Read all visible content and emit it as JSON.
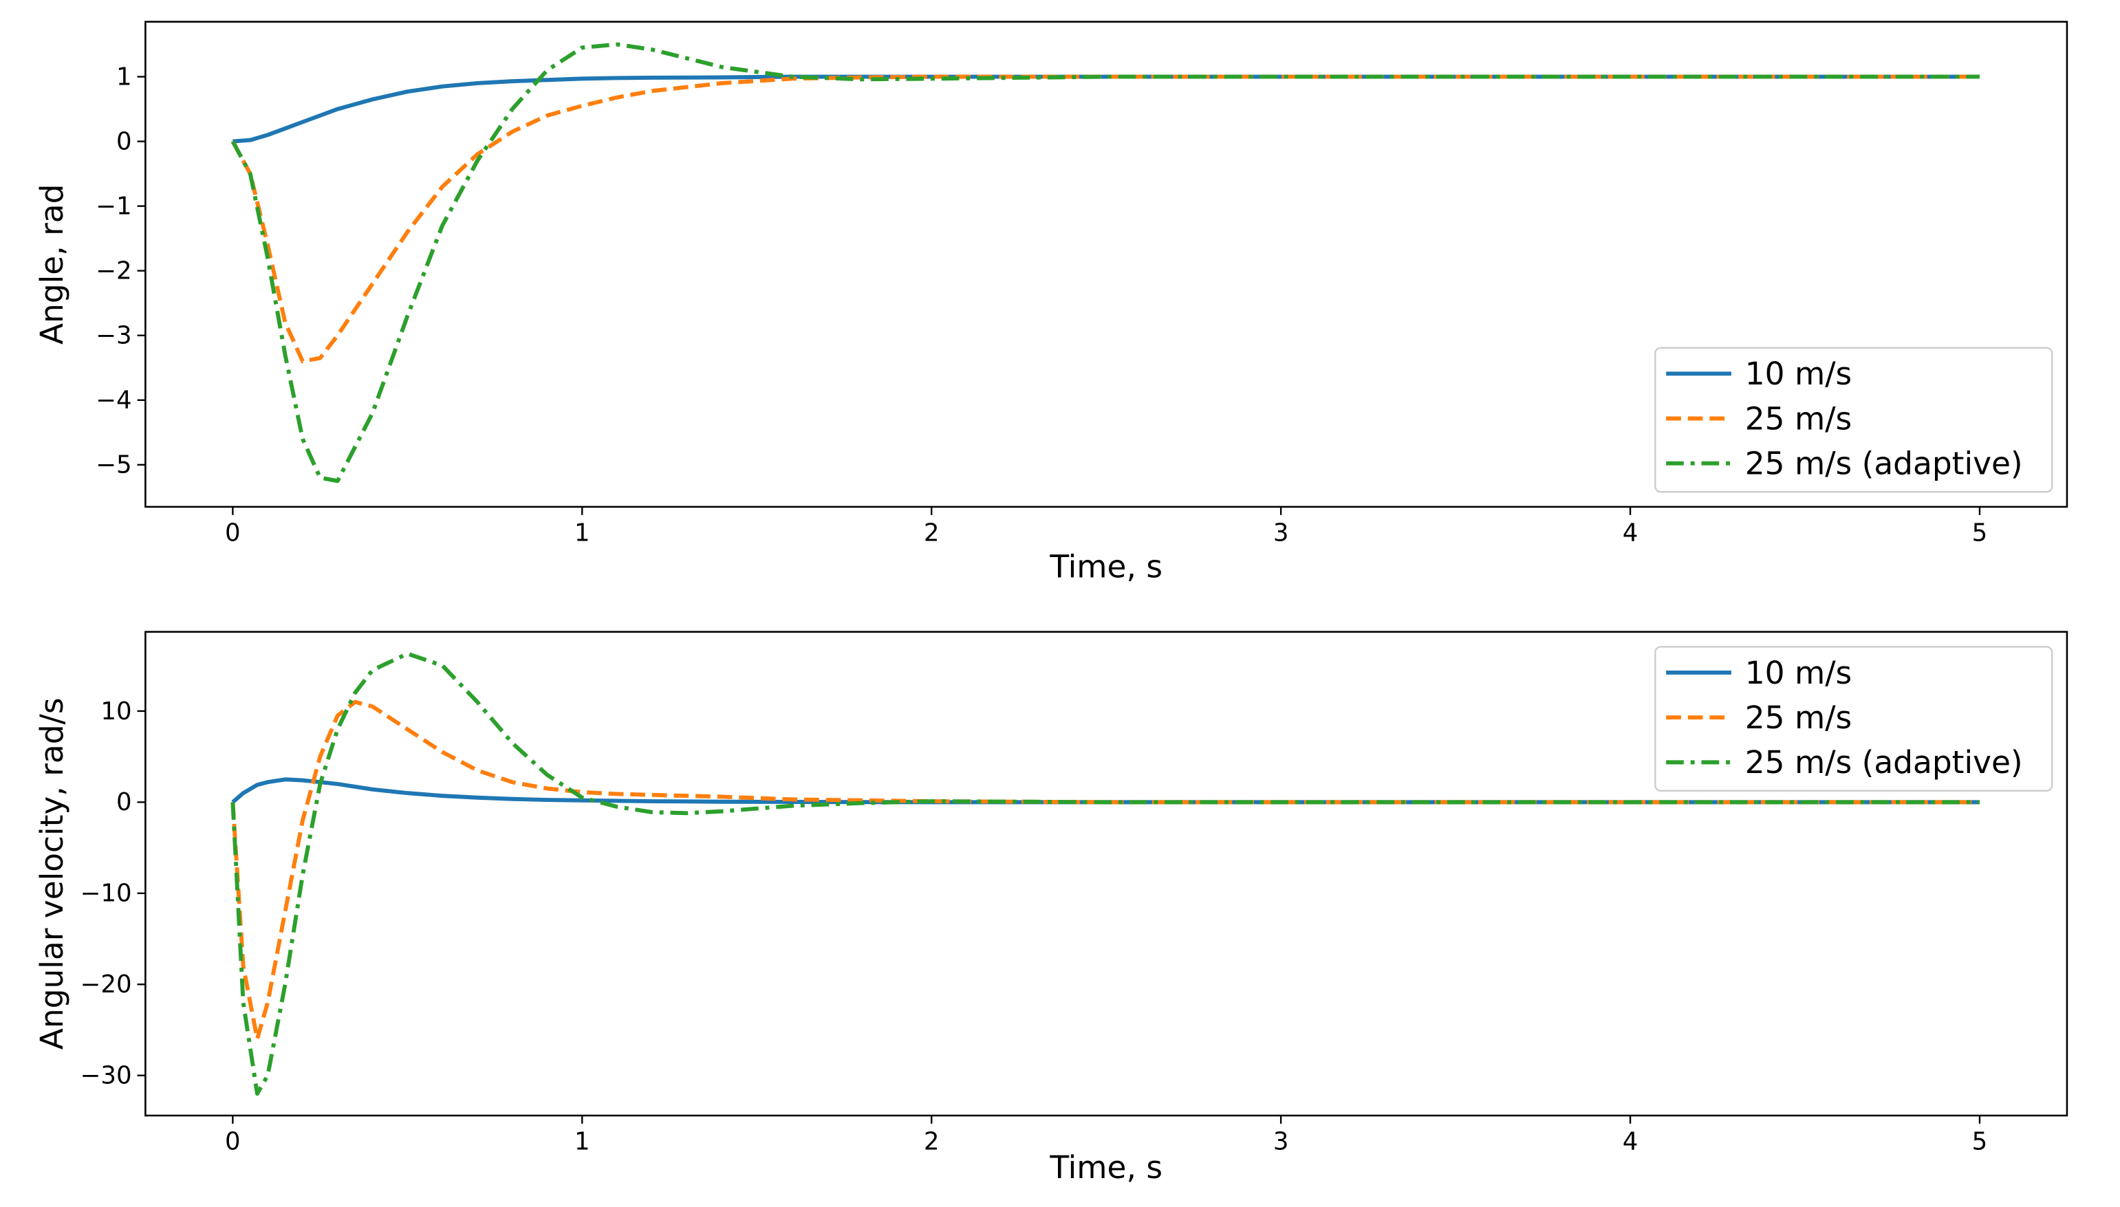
{
  "chart_data": [
    {
      "type": "line",
      "ylabel": "Angle, rad",
      "xlabel": "Time, s",
      "x": [
        0,
        0.05,
        0.1,
        0.15,
        0.2,
        0.25,
        0.3,
        0.4,
        0.5,
        0.6,
        0.7,
        0.8,
        0.9,
        1.0,
        1.1,
        1.2,
        1.4,
        1.6,
        1.8,
        2,
        2.5,
        3,
        4,
        5
      ],
      "series": [
        {
          "name": "10 m/s",
          "color": "#1f77b4",
          "linestyle": "solid",
          "values": [
            0,
            0.02,
            0.1,
            0.2,
            0.3,
            0.4,
            0.5,
            0.65,
            0.77,
            0.85,
            0.9,
            0.93,
            0.95,
            0.97,
            0.98,
            0.985,
            0.99,
            1,
            1,
            1,
            1,
            1,
            1,
            1
          ]
        },
        {
          "name": "25 m/s",
          "color": "#ff7f0e",
          "linestyle": "dashed",
          "values": [
            0,
            -0.5,
            -1.6,
            -2.8,
            -3.4,
            -3.35,
            -3.0,
            -2.2,
            -1.4,
            -0.7,
            -0.2,
            0.15,
            0.4,
            0.55,
            0.68,
            0.78,
            0.9,
            0.97,
            0.99,
            1,
            1,
            1,
            1,
            1
          ]
        },
        {
          "name": "25 m/s (adaptive)",
          "color": "#2ca02c",
          "linestyle": "dashdot",
          "values": [
            0,
            -0.5,
            -1.8,
            -3.3,
            -4.6,
            -5.2,
            -5.25,
            -4.2,
            -2.7,
            -1.3,
            -0.3,
            0.5,
            1.1,
            1.45,
            1.5,
            1.42,
            1.15,
            1.0,
            0.96,
            0.97,
            1,
            1,
            1,
            1
          ]
        }
      ],
      "xlim": [
        -0.25,
        5.25
      ],
      "xticks": [
        0,
        1,
        2,
        3,
        4,
        5
      ],
      "ylim": [
        -5.65,
        1.85
      ],
      "yticks": [
        {
          "value": -5,
          "label": "−5"
        },
        {
          "value": -4,
          "label": "−4"
        },
        {
          "value": -3,
          "label": "−3"
        },
        {
          "value": -2,
          "label": "−2"
        },
        {
          "value": -1,
          "label": "−1"
        },
        0,
        1
      ],
      "legend": "lower right"
    },
    {
      "type": "line",
      "ylabel": "Angular velocity, rad/s",
      "xlabel": "Time, s",
      "x": [
        0,
        0.03,
        0.07,
        0.1,
        0.15,
        0.2,
        0.25,
        0.3,
        0.35,
        0.4,
        0.5,
        0.6,
        0.7,
        0.8,
        0.9,
        1.0,
        1.1,
        1.2,
        1.3,
        1.4,
        1.6,
        1.8,
        2,
        2.5,
        3,
        4,
        5
      ],
      "series": [
        {
          "name": "10 m/s",
          "color": "#1f77b4",
          "linestyle": "solid",
          "values": [
            0,
            1,
            1.9,
            2.2,
            2.5,
            2.4,
            2.2,
            2.0,
            1.7,
            1.4,
            1.0,
            0.7,
            0.5,
            0.35,
            0.25,
            0.2,
            0.15,
            0.1,
            0.08,
            0.05,
            0.03,
            0.01,
            0,
            0,
            0,
            0,
            0
          ]
        },
        {
          "name": "25 m/s",
          "color": "#ff7f0e",
          "linestyle": "dashed",
          "values": [
            0,
            -18,
            -26,
            -22,
            -12,
            -2,
            5,
            9.5,
            11,
            10.5,
            8,
            5.5,
            3.5,
            2.2,
            1.5,
            1.1,
            0.9,
            0.8,
            0.7,
            0.6,
            0.3,
            0.2,
            0.1,
            0,
            0,
            0,
            0
          ]
        },
        {
          "name": "25 m/s (adaptive)",
          "color": "#2ca02c",
          "linestyle": "dashdot",
          "values": [
            0,
            -22,
            -32,
            -30,
            -20,
            -8,
            2,
            8,
            12,
            14.5,
            16.3,
            15,
            11,
            6.5,
            3,
            0.5,
            -0.5,
            -1.1,
            -1.2,
            -1,
            -0.4,
            -0.1,
            0.1,
            0,
            0,
            0,
            0
          ]
        }
      ],
      "xlim": [
        -0.25,
        5.25
      ],
      "xticks": [
        0,
        1,
        2,
        3,
        4,
        5
      ],
      "ylim": [
        -34.4,
        18.7
      ],
      "yticks": [
        {
          "value": -30,
          "label": "−30"
        },
        {
          "value": -20,
          "label": "−20"
        },
        {
          "value": -10,
          "label": "−10"
        },
        0,
        10
      ],
      "legend": "upper right"
    }
  ]
}
